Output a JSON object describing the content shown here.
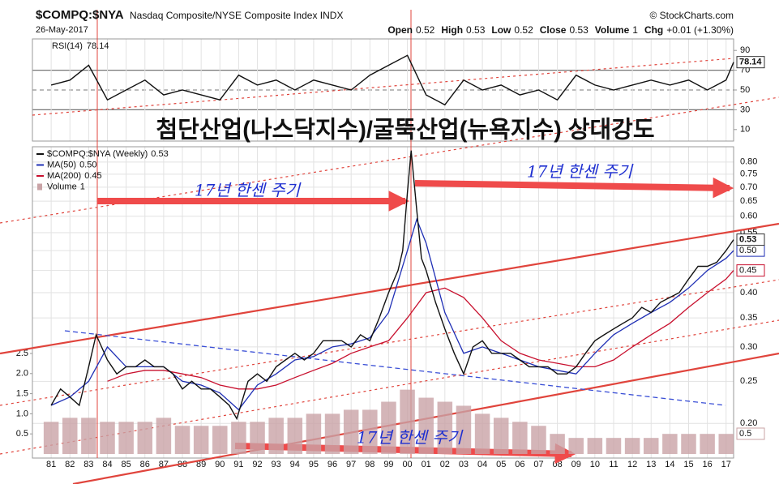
{
  "chart_data": [
    {
      "type": "line",
      "title": "RSI(14)",
      "xlim": [
        1980,
        2017.4
      ],
      "ylim": [
        0,
        100
      ],
      "yticks": [
        10,
        30,
        50,
        70,
        90
      ],
      "levels": [
        30,
        70
      ],
      "midline": 50,
      "series": [
        {
          "color": "#111111",
          "legend_value": "78.14",
          "last": "78.14",
          "x": [
            1981,
            1982,
            1983,
            1984,
            1985,
            1986,
            1987,
            1988,
            1989,
            1990,
            1991,
            1992,
            1993,
            1994,
            1995,
            1996,
            1997,
            1998,
            1999,
            2000,
            2001,
            2002,
            2003,
            2004,
            2005,
            2006,
            2007,
            2008,
            2009,
            2010,
            2011,
            2012,
            2013,
            2014,
            2015,
            2016,
            2017,
            2017.4
          ],
          "values": [
            55,
            60,
            75,
            40,
            50,
            60,
            45,
            50,
            45,
            40,
            65,
            55,
            60,
            50,
            60,
            55,
            50,
            65,
            75,
            85,
            45,
            35,
            60,
            50,
            55,
            45,
            50,
            40,
            65,
            55,
            50,
            55,
            60,
            55,
            60,
            50,
            60,
            78.14
          ]
        }
      ]
    },
    {
      "type": "line",
      "title": "$COMPQ:$NYA",
      "subtitle": "Nasdaq Composite/NYSE Composite Index INDX",
      "date": "26-May-2017",
      "source": "© StockCharts.com",
      "quote": [
        {
          "label": "Open",
          "value": "0.52"
        },
        {
          "label": "High",
          "value": "0.53"
        },
        {
          "label": "Low",
          "value": "0.52"
        },
        {
          "label": "Close",
          "value": "0.53"
        },
        {
          "label": "Volume",
          "value": "1"
        },
        {
          "label": "Chg",
          "value": "+0.01 (+1.30%)"
        }
      ],
      "headline": "첨단산업(나스닥지수)/굴뚝산업(뉴욕지수) 상대강도",
      "annotations": [
        "17년 한센 주기",
        "17년 한센 주기",
        "17년 한센 주기"
      ],
      "log_scale": true,
      "grid": true,
      "xlim": [
        1980,
        2017.4
      ],
      "xticks": [
        {
          "value": 1981,
          "label": "81"
        },
        {
          "value": 1982,
          "label": "82"
        },
        {
          "value": 1983,
          "label": "83"
        },
        {
          "value": 1984,
          "label": "84"
        },
        {
          "value": 1985,
          "label": "85"
        },
        {
          "value": 1986,
          "label": "86"
        },
        {
          "value": 1987,
          "label": "87"
        },
        {
          "value": 1988,
          "label": "88"
        },
        {
          "value": 1989,
          "label": "89"
        },
        {
          "value": 1990,
          "label": "90"
        },
        {
          "value": 1991,
          "label": "91"
        },
        {
          "value": 1992,
          "label": "92"
        },
        {
          "value": 1993,
          "label": "93"
        },
        {
          "value": 1994,
          "label": "94"
        },
        {
          "value": 1995,
          "label": "95"
        },
        {
          "value": 1996,
          "label": "96"
        },
        {
          "value": 1997,
          "label": "97"
        },
        {
          "value": 1998,
          "label": "98"
        },
        {
          "value": 1999,
          "label": "99"
        },
        {
          "value": 2000,
          "label": "00"
        },
        {
          "value": 2001,
          "label": "01"
        },
        {
          "value": 2002,
          "label": "02"
        },
        {
          "value": 2003,
          "label": "03"
        },
        {
          "value": 2004,
          "label": "04"
        },
        {
          "value": 2005,
          "label": "05"
        },
        {
          "value": 2006,
          "label": "06"
        },
        {
          "value": 2007,
          "label": "07"
        },
        {
          "value": 2008,
          "label": "08"
        },
        {
          "value": 2009,
          "label": "09"
        },
        {
          "value": 2010,
          "label": "10"
        },
        {
          "value": 2011,
          "label": "11"
        },
        {
          "value": 2012,
          "label": "12"
        },
        {
          "value": 2013,
          "label": "13"
        },
        {
          "value": 2014,
          "label": "14"
        },
        {
          "value": 2015,
          "label": "15"
        },
        {
          "value": 2016,
          "label": "16"
        },
        {
          "value": 2017,
          "label": "17"
        }
      ],
      "ylim": [
        0.17,
        0.86
      ],
      "yticks": [
        {
          "value": 0.2,
          "label": "0.20"
        },
        0.25,
        {
          "value": 0.3,
          "label": "0.30"
        },
        0.35,
        {
          "value": 0.4,
          "label": "0.40"
        },
        0.45,
        {
          "value": 0.5,
          "label": "0.50"
        },
        0.55,
        {
          "value": 0.6,
          "label": "0.60"
        },
        0.65,
        {
          "value": 0.7,
          "label": "0.70"
        },
        0.75,
        {
          "value": 0.8,
          "label": "0.80"
        }
      ],
      "y2lim": [
        0,
        7.6
      ],
      "y2ticks": [
        0.5,
        {
          "value": 1,
          "label": "1.0"
        },
        1.5,
        {
          "value": 2,
          "label": "2.0"
        },
        2.5
      ],
      "series": [
        {
          "name": "Volume",
          "axis": "y2",
          "style": "bar",
          "color": "#c9a3a6",
          "legend_value": "1",
          "last": "0.5",
          "x": [
            1981,
            1982,
            1983,
            1984,
            1985,
            1986,
            1987,
            1988,
            1989,
            1990,
            1991,
            1992,
            1993,
            1994,
            1995,
            1996,
            1997,
            1998,
            1999,
            2000,
            2001,
            2002,
            2003,
            2004,
            2005,
            2006,
            2007,
            2008,
            2009,
            2010,
            2011,
            2012,
            2013,
            2014,
            2015,
            2016,
            2017
          ],
          "values": [
            0.8,
            0.9,
            0.9,
            0.8,
            0.8,
            0.8,
            0.9,
            0.7,
            0.7,
            0.7,
            0.8,
            0.8,
            0.9,
            0.9,
            1.0,
            1.0,
            1.1,
            1.1,
            1.3,
            1.6,
            1.4,
            1.3,
            1.2,
            1.0,
            0.9,
            0.8,
            0.7,
            0.5,
            0.4,
            0.4,
            0.4,
            0.4,
            0.4,
            0.5,
            0.5,
            0.5,
            0.5
          ]
        },
        {
          "name": "MA(200)",
          "color": "#c8102e",
          "legend_value": "0.45",
          "last": "0.45",
          "x": [
            1984,
            1985,
            1986,
            1987,
            1988,
            1989,
            1990,
            1991,
            1992,
            1993,
            1994,
            1995,
            1996,
            1997,
            1998,
            1999,
            2000,
            2001,
            2002,
            2003,
            2004,
            2005,
            2006,
            2007,
            2008,
            2009,
            2010,
            2011,
            2012,
            2013,
            2014,
            2015,
            2016,
            2017,
            2017.4
          ],
          "values": [
            0.25,
            0.26,
            0.265,
            0.265,
            0.26,
            0.255,
            0.245,
            0.24,
            0.24,
            0.245,
            0.255,
            0.265,
            0.275,
            0.29,
            0.3,
            0.31,
            0.35,
            0.4,
            0.41,
            0.39,
            0.35,
            0.31,
            0.29,
            0.28,
            0.275,
            0.27,
            0.27,
            0.28,
            0.3,
            0.32,
            0.34,
            0.37,
            0.4,
            0.43,
            0.45
          ]
        },
        {
          "name": "MA(50)",
          "color": "#1f2fb5",
          "legend_value": "0.50",
          "last": "0.50",
          "x": [
            1981,
            1982,
            1983,
            1984,
            1985,
            1986,
            1987,
            1988,
            1989,
            1990,
            1991,
            1992,
            1993,
            1994,
            1995,
            1996,
            1997,
            1998,
            1999,
            2000,
            2000.5,
            2001,
            2002,
            2003,
            2004,
            2005,
            2006,
            2007,
            2008,
            2009,
            2010,
            2011,
            2012,
            2013,
            2014,
            2015,
            2016,
            2017,
            2017.4
          ],
          "values": [
            0.22,
            0.23,
            0.25,
            0.3,
            0.27,
            0.27,
            0.27,
            0.25,
            0.245,
            0.235,
            0.215,
            0.245,
            0.26,
            0.28,
            0.285,
            0.3,
            0.305,
            0.315,
            0.36,
            0.5,
            0.59,
            0.52,
            0.36,
            0.29,
            0.3,
            0.29,
            0.28,
            0.27,
            0.265,
            0.26,
            0.29,
            0.32,
            0.34,
            0.36,
            0.38,
            0.41,
            0.45,
            0.48,
            0.5
          ]
        },
        {
          "name": "$COMPQ:$NYA (Weekly)",
          "color": "#111111",
          "legend_value": "0.53",
          "last": "0.53",
          "x": [
            1981,
            1981.5,
            1982,
            1982.5,
            1983,
            1983.4,
            1984,
            1984.5,
            1985,
            1985.5,
            1986,
            1986.5,
            1987,
            1987.5,
            1988,
            1988.5,
            1989,
            1989.5,
            1990,
            1990.5,
            1990.9,
            1991.5,
            1992,
            1992.5,
            1993,
            1993.5,
            1994,
            1994.5,
            1995,
            1995.5,
            1996,
            1996.5,
            1997,
            1997.5,
            1998,
            1998.5,
            1999,
            1999.5,
            1999.75,
            2000,
            2000.2,
            2000.5,
            2000.75,
            2001,
            2001.5,
            2002,
            2002.5,
            2003,
            2003.5,
            2004,
            2004.5,
            2005,
            2005.5,
            2006,
            2006.5,
            2007,
            2007.5,
            2008,
            2008.5,
            2009,
            2009.5,
            2010,
            2010.5,
            2011,
            2011.5,
            2012,
            2012.5,
            2013,
            2013.5,
            2014,
            2014.5,
            2015,
            2015.5,
            2016,
            2016.5,
            2017,
            2017.4
          ],
          "values": [
            0.22,
            0.24,
            0.23,
            0.22,
            0.27,
            0.32,
            0.28,
            0.26,
            0.27,
            0.27,
            0.28,
            0.27,
            0.27,
            0.26,
            0.24,
            0.25,
            0.24,
            0.24,
            0.23,
            0.22,
            0.205,
            0.25,
            0.26,
            0.25,
            0.27,
            0.28,
            0.29,
            0.28,
            0.29,
            0.31,
            0.31,
            0.31,
            0.3,
            0.32,
            0.31,
            0.35,
            0.4,
            0.45,
            0.5,
            0.68,
            0.85,
            0.62,
            0.48,
            0.45,
            0.38,
            0.33,
            0.29,
            0.26,
            0.3,
            0.31,
            0.29,
            0.29,
            0.29,
            0.28,
            0.27,
            0.27,
            0.27,
            0.26,
            0.26,
            0.27,
            0.29,
            0.31,
            0.32,
            0.33,
            0.34,
            0.35,
            0.37,
            0.36,
            0.38,
            0.39,
            0.4,
            0.43,
            0.46,
            0.46,
            0.47,
            0.5,
            0.53
          ]
        }
      ]
    }
  ]
}
